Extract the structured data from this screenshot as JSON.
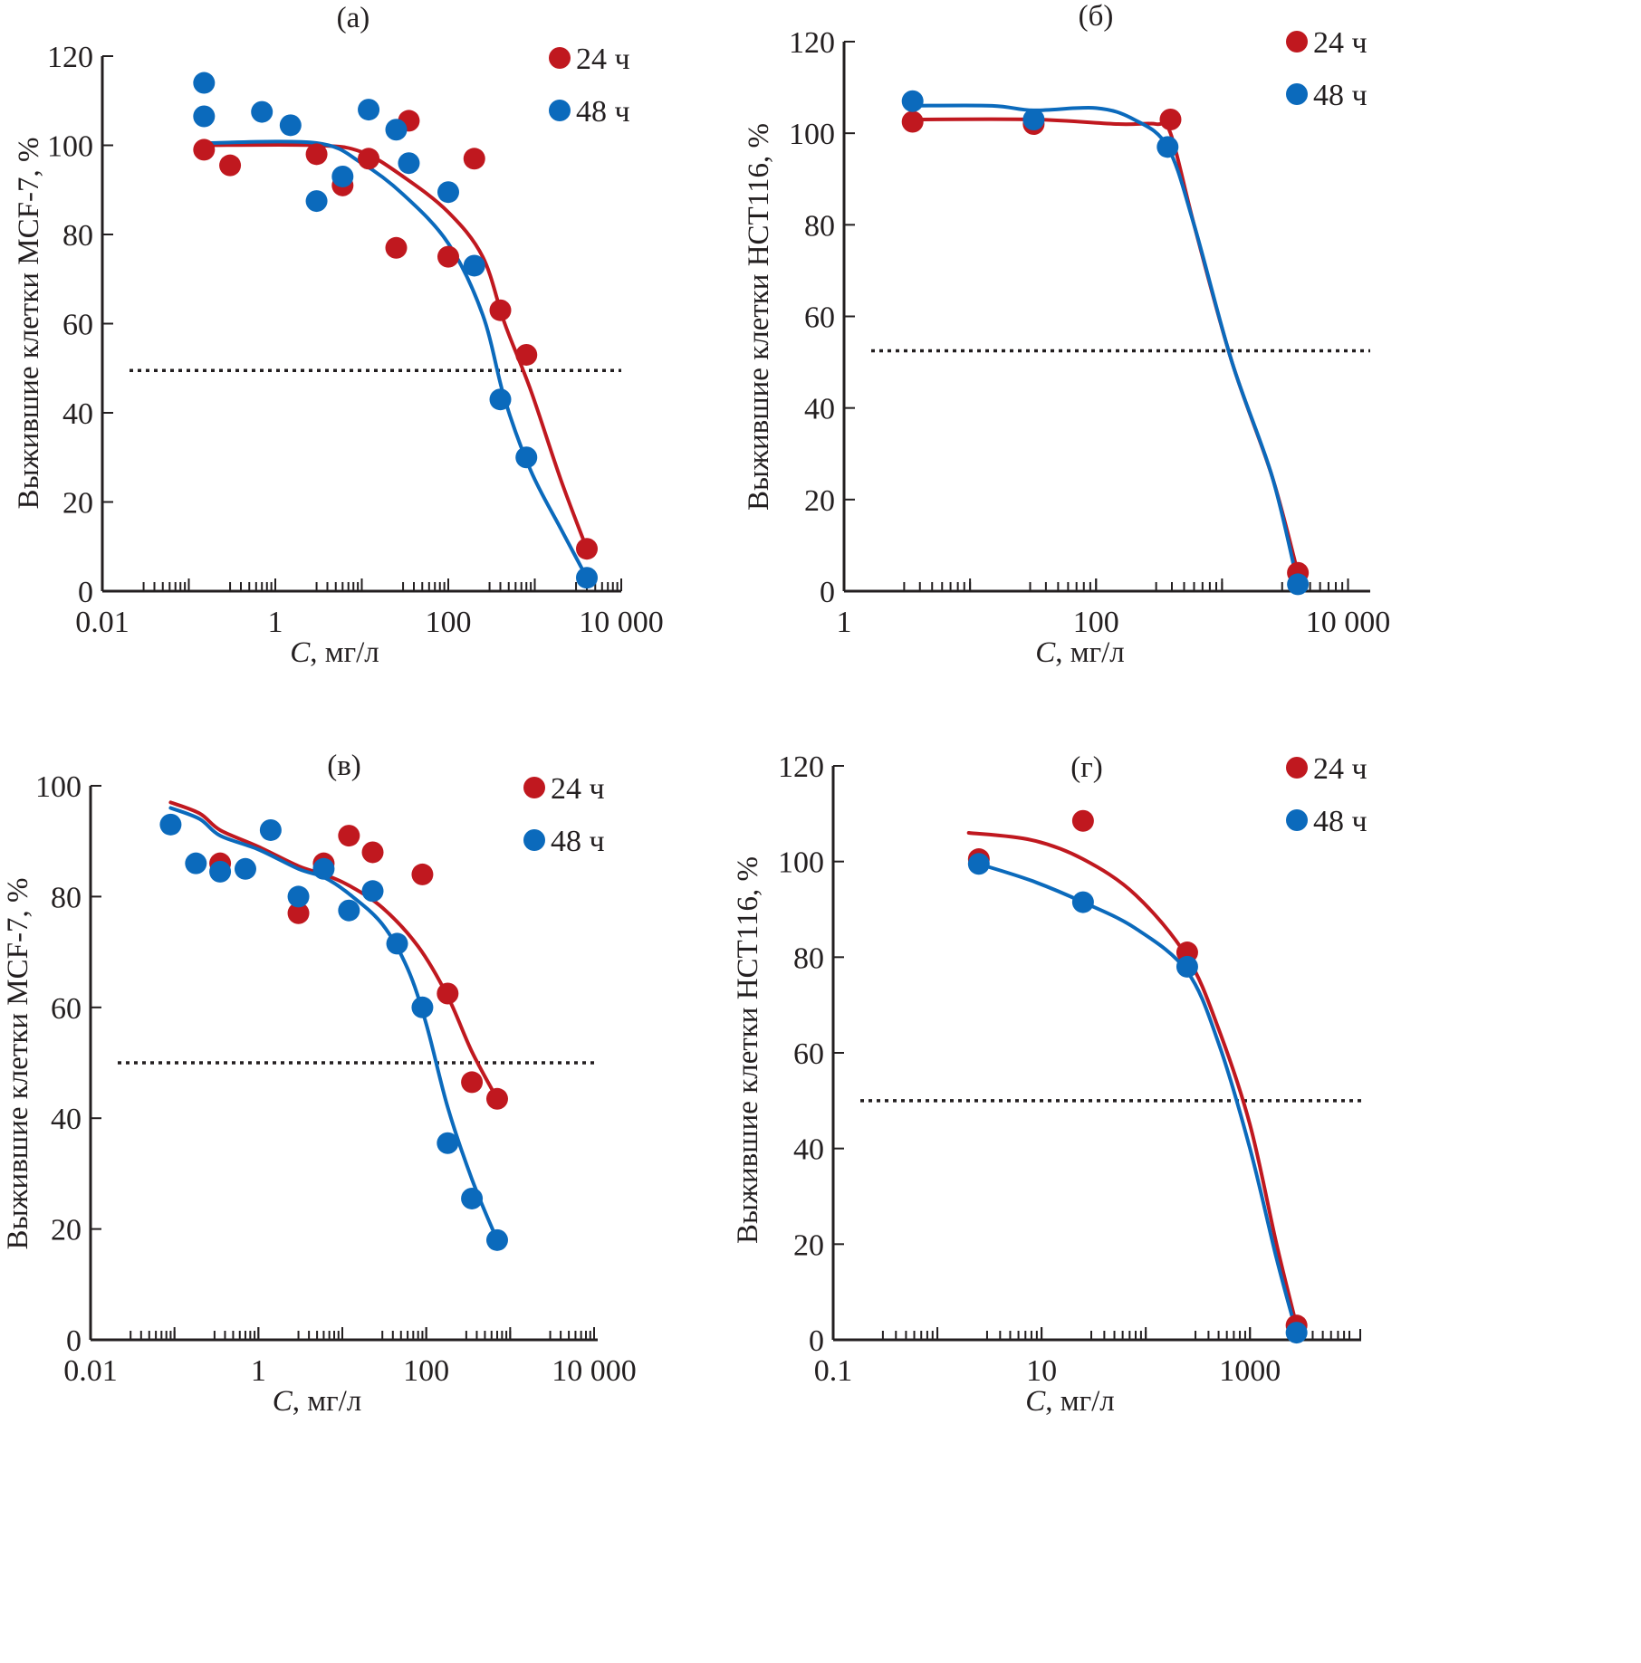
{
  "figure": {
    "common": {
      "xlabel_italic": "C",
      "xlabel_rest": ", мг/л",
      "legend": [
        {
          "label": "24  ч",
          "color": "#c0181f"
        },
        {
          "label": "48 ч",
          "color": "#0b6abc"
        }
      ]
    }
  },
  "chart_data": [
    {
      "id": "a",
      "type": "scatter",
      "title": "(а)",
      "xlabel": "C, мг/л",
      "ylabel": "Выжившие клетки MCF-7, %",
      "xscale": "log",
      "xlim": [
        0.01,
        10000
      ],
      "ylim": [
        0,
        120
      ],
      "xticks": [
        0.01,
        1,
        100,
        10000
      ],
      "xtick_labels": [
        "0.01",
        "1",
        "100",
        "10 000"
      ],
      "yticks": [
        0,
        20,
        40,
        60,
        80,
        100,
        120
      ],
      "ytick_labels": [
        "0",
        "20",
        "40",
        "60",
        "80",
        "100",
        "120"
      ],
      "reference_line_y": 49.5,
      "legend_position": "top-right",
      "series": [
        {
          "name": "24 ч",
          "color": "#c0181f",
          "points": [
            [
              0.15,
              99
            ],
            [
              0.3,
              95.5
            ],
            [
              3,
              98
            ],
            [
              6,
              91
            ],
            [
              12,
              97
            ],
            [
              25,
              77
            ],
            [
              35,
              105.5
            ],
            [
              100,
              75
            ],
            [
              200,
              97
            ],
            [
              400,
              63
            ],
            [
              800,
              53
            ],
            [
              4000,
              9.5
            ]
          ],
          "fit": [
            [
              0.15,
              100
            ],
            [
              3,
              100
            ],
            [
              10,
              98.5
            ],
            [
              30,
              93
            ],
            [
              100,
              85
            ],
            [
              250,
              75
            ],
            [
              450,
              60
            ],
            [
              900,
              45
            ],
            [
              2000,
              25
            ],
            [
              4000,
              9.5
            ]
          ]
        },
        {
          "name": "48 ч",
          "color": "#0b6abc",
          "points": [
            [
              0.15,
              114
            ],
            [
              0.15,
              106.5
            ],
            [
              0.7,
              107.5
            ],
            [
              1.5,
              104.5
            ],
            [
              3,
              87.5
            ],
            [
              6,
              93
            ],
            [
              12,
              108
            ],
            [
              25,
              103.5
            ],
            [
              35,
              96
            ],
            [
              100,
              89.5
            ],
            [
              200,
              73
            ],
            [
              400,
              43
            ],
            [
              800,
              30
            ],
            [
              4000,
              3
            ]
          ],
          "fit": [
            [
              0.15,
              100.5
            ],
            [
              3,
              100.5
            ],
            [
              10,
              96
            ],
            [
              30,
              89
            ],
            [
              100,
              78
            ],
            [
              250,
              62
            ],
            [
              450,
              43
            ],
            [
              900,
              27
            ],
            [
              2000,
              14
            ],
            [
              4000,
              3
            ]
          ]
        }
      ]
    },
    {
      "id": "b",
      "type": "scatter",
      "title": "(б)",
      "xlabel": "C, мг/л",
      "ylabel": "Выжившие клетки HCT116, %",
      "xscale": "log",
      "xlim": [
        1,
        15000
      ],
      "ylim": [
        0,
        120
      ],
      "xticks": [
        1,
        100,
        10000
      ],
      "xtick_labels": [
        "1",
        "100",
        "10 000"
      ],
      "yticks": [
        0,
        20,
        40,
        60,
        80,
        100,
        120
      ],
      "ytick_labels": [
        "0",
        "20",
        "40",
        "60",
        "80",
        "100",
        "120"
      ],
      "reference_line_y": 52.5,
      "legend_position": "top-right",
      "series": [
        {
          "name": "24 ч",
          "color": "#c0181f",
          "points": [
            [
              3.5,
              102.5
            ],
            [
              32,
              102
            ],
            [
              390,
              103
            ],
            [
              4000,
              4
            ]
          ],
          "fit": [
            [
              3.5,
              103
            ],
            [
              32,
              103
            ],
            [
              150,
              102
            ],
            [
              300,
              102
            ],
            [
              390,
              100
            ],
            [
              600,
              80
            ],
            [
              1200,
              50
            ],
            [
              2500,
              25
            ],
            [
              4000,
              4
            ]
          ]
        },
        {
          "name": "48 ч",
          "color": "#0b6abc",
          "points": [
            [
              3.5,
              107
            ],
            [
              32,
              103
            ],
            [
              370,
              97
            ],
            [
              4000,
              1.5
            ]
          ],
          "fit": [
            [
              3.5,
              106
            ],
            [
              15,
              106
            ],
            [
              32,
              105
            ],
            [
              100,
              105.5
            ],
            [
              200,
              103
            ],
            [
              370,
              97
            ],
            [
              600,
              80
            ],
            [
              1200,
              50
            ],
            [
              2500,
              25
            ],
            [
              4000,
              1.5
            ]
          ]
        }
      ]
    },
    {
      "id": "c",
      "type": "scatter",
      "title": "(в)",
      "xlabel": "C, мг/л",
      "ylabel": "Выжившие клетки MCF-7, %",
      "xscale": "log",
      "xlim": [
        0.01,
        10000
      ],
      "ylim": [
        0,
        100
      ],
      "xticks": [
        0.01,
        1,
        100,
        10000
      ],
      "xtick_labels": [
        "0.01",
        "1",
        "100",
        "10 000"
      ],
      "yticks": [
        0,
        20,
        40,
        60,
        80,
        100
      ],
      "ytick_labels": [
        "0",
        "20",
        "40",
        "60",
        "80",
        "100"
      ],
      "reference_line_y": 50,
      "legend_position": "top-right",
      "series": [
        {
          "name": "24 ч",
          "color": "#c0181f",
          "points": [
            [
              0.35,
              86
            ],
            [
              3,
              77
            ],
            [
              6,
              86
            ],
            [
              12,
              91
            ],
            [
              23,
              88
            ],
            [
              90,
              84
            ],
            [
              180,
              62.5
            ],
            [
              350,
              46.5
            ],
            [
              700,
              43.5
            ]
          ],
          "fit": [
            [
              0.09,
              97
            ],
            [
              0.2,
              95
            ],
            [
              0.35,
              92
            ],
            [
              1,
              89
            ],
            [
              3,
              85.5
            ],
            [
              6,
              84
            ],
            [
              12,
              82
            ],
            [
              30,
              78
            ],
            [
              80,
              71
            ],
            [
              180,
              62
            ],
            [
              350,
              52
            ],
            [
              700,
              43.5
            ]
          ]
        },
        {
          "name": "48 ч",
          "color": "#0b6abc",
          "points": [
            [
              0.09,
              93
            ],
            [
              0.18,
              86
            ],
            [
              0.35,
              84.5
            ],
            [
              0.7,
              85
            ],
            [
              1.4,
              92
            ],
            [
              3,
              80
            ],
            [
              6,
              85
            ],
            [
              12,
              77.5
            ],
            [
              23,
              81
            ],
            [
              45,
              71.5
            ],
            [
              90,
              60
            ],
            [
              180,
              35.5
            ],
            [
              350,
              25.5
            ],
            [
              700,
              18
            ]
          ],
          "fit": [
            [
              0.09,
              96
            ],
            [
              0.2,
              94
            ],
            [
              0.35,
              91
            ],
            [
              1,
              88.5
            ],
            [
              3,
              85
            ],
            [
              6,
              83.5
            ],
            [
              12,
              80.5
            ],
            [
              30,
              75
            ],
            [
              60,
              67
            ],
            [
              100,
              57
            ],
            [
              180,
              42
            ],
            [
              350,
              29
            ],
            [
              700,
              18
            ]
          ]
        }
      ]
    },
    {
      "id": "d",
      "type": "scatter",
      "title": "(г)",
      "xlabel": "C, мг/л",
      "ylabel": "Выжившие клетки HCT116, %",
      "xscale": "log",
      "xlim": [
        0.1,
        9000
      ],
      "ylim": [
        0,
        120
      ],
      "xticks": [
        0.1,
        10,
        1000
      ],
      "xtick_labels": [
        "0.1",
        "10",
        "1000"
      ],
      "yticks": [
        0,
        20,
        40,
        60,
        80,
        100,
        120
      ],
      "ytick_labels": [
        "0",
        "20",
        "40",
        "60",
        "80",
        "100",
        "120"
      ],
      "reference_line_y": 50,
      "legend_position": "top-right",
      "series": [
        {
          "name": "24 ч",
          "color": "#c0181f",
          "points": [
            [
              2.5,
              100.5
            ],
            [
              25,
              108.5
            ],
            [
              250,
              81
            ],
            [
              2800,
              3
            ]
          ],
          "fit": [
            [
              2,
              106
            ],
            [
              8,
              104.5
            ],
            [
              25,
              100.5
            ],
            [
              80,
              93
            ],
            [
              250,
              80
            ],
            [
              500,
              65
            ],
            [
              1000,
              45
            ],
            [
              1800,
              20
            ],
            [
              2800,
              3
            ]
          ]
        },
        {
          "name": "48 ч",
          "color": "#0b6abc",
          "points": [
            [
              2.5,
              99.5
            ],
            [
              25,
              91.5
            ],
            [
              250,
              78
            ],
            [
              2800,
              1.5
            ]
          ],
          "fit": [
            [
              2.5,
              99.5
            ],
            [
              8,
              96
            ],
            [
              25,
              91.5
            ],
            [
              80,
              86
            ],
            [
              250,
              77
            ],
            [
              500,
              62
            ],
            [
              1000,
              40
            ],
            [
              1800,
              17
            ],
            [
              2800,
              1.5
            ]
          ]
        }
      ]
    }
  ]
}
